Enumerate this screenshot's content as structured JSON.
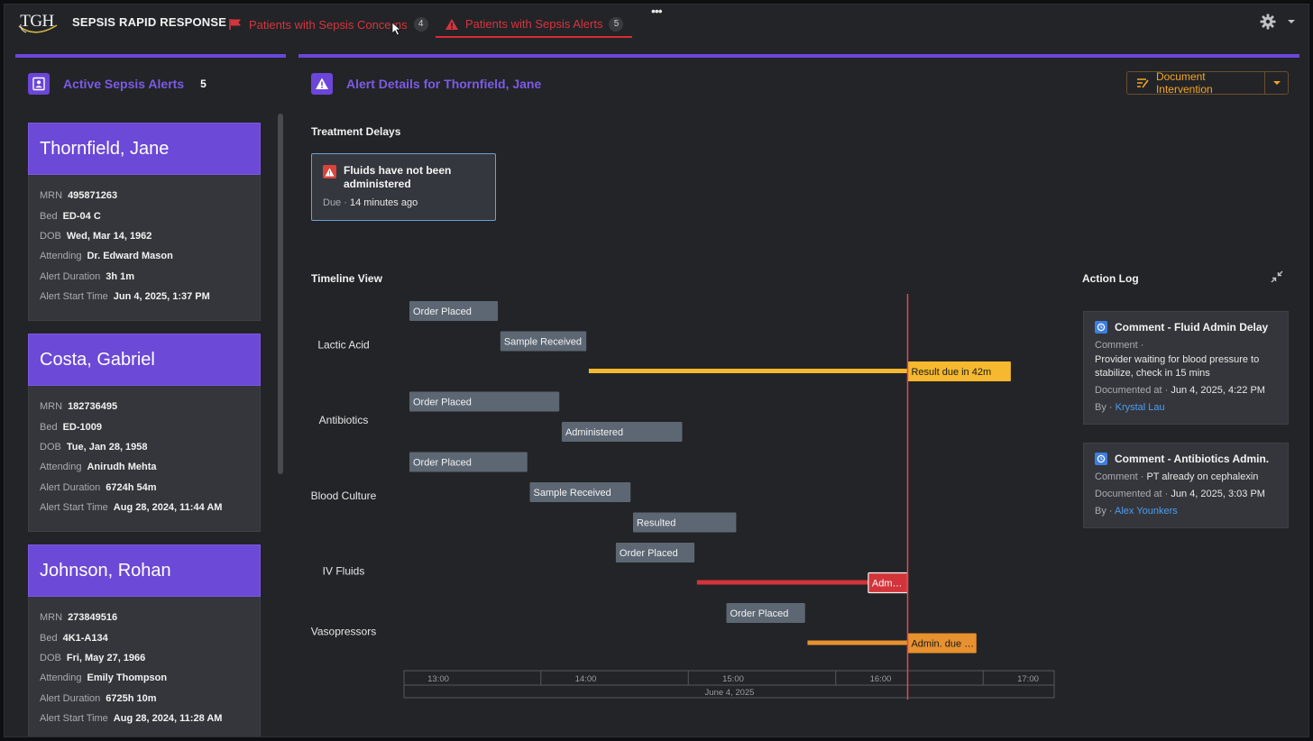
{
  "app": {
    "logo_text": "TGH",
    "title": "SEPSIS RAPID RESPONSE"
  },
  "tabs": [
    {
      "label": "Patients with Sepsis Concerns",
      "count": "4",
      "icon": "flag-icon",
      "active": false
    },
    {
      "label": "Patients with Sepsis Alerts",
      "count": "5",
      "icon": "warning-icon",
      "active": true
    }
  ],
  "colors": {
    "accent_purple": "#6b46d9",
    "alert_red": "#d6343e",
    "amber": "#f5a623",
    "bar_gray": "#5c6773",
    "link_blue": "#4e9cf0"
  },
  "left_panel": {
    "title": "Active Sepsis Alerts",
    "count": "5",
    "labels": {
      "mrn": "MRN",
      "bed": "Bed",
      "dob": "DOB",
      "attending": "Attending",
      "duration": "Alert Duration",
      "start": "Alert Start Time"
    },
    "patients": [
      {
        "name": "Thornfield, Jane",
        "mrn": "495871263",
        "bed": "ED-04 C",
        "dob": "Wed, Mar 14, 1962",
        "attending": "Dr. Edward Mason",
        "duration": "3h 1m",
        "start": "Jun 4, 2025, 1:37 PM"
      },
      {
        "name": "Costa, Gabriel",
        "mrn": "182736495",
        "bed": "ED-1009",
        "dob": "Tue, Jan 28, 1958",
        "attending": "Anirudh Mehta",
        "duration": "6724h 54m",
        "start": "Aug 28, 2024, 11:44 AM"
      },
      {
        "name": "Johnson, Rohan",
        "mrn": "273849516",
        "bed": "4K1-A134",
        "dob": "Fri, May 27, 1966",
        "attending": "Emily Thompson",
        "duration": "6725h 10m",
        "start": "Aug 28, 2024, 11:28 AM"
      }
    ]
  },
  "main": {
    "title": "Alert Details for Thornfield, Jane",
    "document_button": "Document Intervention",
    "treatment_delays_title": "Treatment Delays",
    "delay": {
      "text": "Fluids have not been administered",
      "due_label": "Due",
      "due_value": "14 minutes ago"
    },
    "timeline_title": "Timeline View",
    "action_log_title": "Action Log",
    "action_log": [
      {
        "title": "Comment - Fluid Admin Delay",
        "comment_label": "Comment",
        "comment": "Provider waiting for blood pressure to stabilize, check in 15 mins",
        "documented_label": "Documented at",
        "documented": "Jun 4, 2025, 4:22 PM",
        "by_label": "By",
        "by": "Krystal Lau"
      },
      {
        "title": "Comment - Antibiotics Admin.",
        "comment_label": "Comment",
        "comment": "PT already on cephalexin",
        "documented_label": "Documented at",
        "documented": "Jun 4, 2025, 3:03 PM",
        "by_label": "By",
        "by": "Alex Younkers"
      }
    ]
  },
  "chart_data": {
    "type": "timeline",
    "date_label": "June 4, 2025",
    "x_ticks": [
      "13:00",
      "14:00",
      "15:00",
      "16:00",
      "17:00"
    ],
    "now": "16:11",
    "groups": [
      {
        "name": "Lactic Acid",
        "rows": [
          {
            "label": "Order Placed",
            "start": "13:00",
            "end": "13:36",
            "style": "event"
          },
          {
            "label": "Sample Received",
            "start": "13:37",
            "end": "14:12",
            "style": "event"
          },
          {
            "label": "Result due in 42m",
            "start": "14:13",
            "end": "16:11",
            "style": "pending-amber",
            "tag_end": "16:53"
          }
        ]
      },
      {
        "name": "Antibiotics",
        "rows": [
          {
            "label": "Order Placed",
            "start": "13:00",
            "end": "14:01",
            "style": "event"
          },
          {
            "label": "Administered",
            "start": "14:02",
            "end": "14:51",
            "style": "event"
          }
        ]
      },
      {
        "name": "Blood Culture",
        "rows": [
          {
            "label": "Order Placed",
            "start": "13:00",
            "end": "13:48",
            "style": "event"
          },
          {
            "label": "Sample Received",
            "start": "13:49",
            "end": "14:30",
            "style": "event"
          },
          {
            "label": "Resulted",
            "start": "14:31",
            "end": "15:13",
            "style": "event"
          }
        ]
      },
      {
        "name": "IV Fluids",
        "rows": [
          {
            "label": "Order Placed",
            "start": "14:24",
            "end": "14:56",
            "style": "event"
          },
          {
            "label": "Adm…",
            "start": "14:57",
            "end": "15:55",
            "style": "overdue-red",
            "tag_end": "16:11"
          }
        ]
      },
      {
        "name": "Vasopressors",
        "rows": [
          {
            "label": "Order Placed",
            "start": "15:09",
            "end": "15:41",
            "style": "event"
          },
          {
            "label": "Admin. due …",
            "start": "15:42",
            "end": "16:11",
            "style": "pending-orange",
            "tag_end": "16:39"
          }
        ]
      }
    ]
  }
}
